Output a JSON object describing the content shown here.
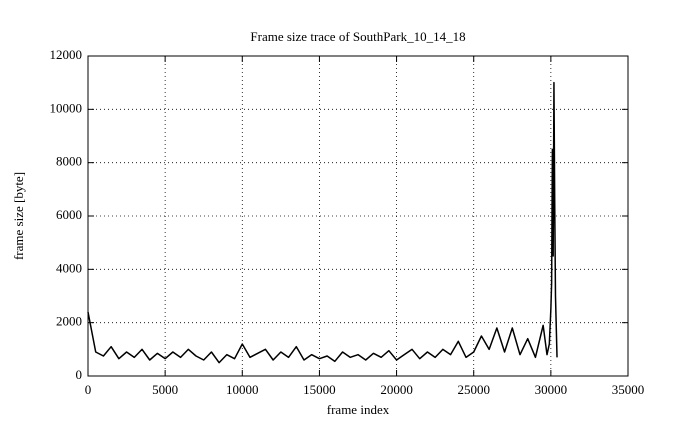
{
  "chart_data": {
    "type": "line",
    "title": "Frame size trace of SouthPark_10_14_18",
    "x_label": "frame index",
    "y_label": "frame size [byte]",
    "x": [
      0,
      500,
      1000,
      1500,
      2000,
      2500,
      3000,
      3500,
      4000,
      4500,
      5000,
      5500,
      6000,
      6500,
      7000,
      7500,
      8000,
      8500,
      9000,
      9500,
      10000,
      10500,
      11000,
      11500,
      12000,
      12500,
      13000,
      13500,
      14000,
      14500,
      15000,
      15500,
      16000,
      16500,
      17000,
      17500,
      18000,
      18500,
      19000,
      19500,
      20000,
      20500,
      21000,
      21500,
      22000,
      22500,
      23000,
      23500,
      24000,
      24500,
      25000,
      25500,
      26000,
      26500,
      27000,
      27500,
      28000,
      28500,
      29000,
      29500,
      29750,
      29900,
      30000,
      30050,
      30100,
      30150,
      30200,
      30250,
      30300,
      30400
    ],
    "series": [
      {
        "name": "frame size",
        "color": "#000000",
        "values": [
          2400,
          900,
          750,
          1100,
          650,
          900,
          700,
          1000,
          600,
          850,
          650,
          900,
          700,
          1000,
          750,
          600,
          900,
          500,
          800,
          650,
          1200,
          700,
          850,
          1000,
          600,
          900,
          700,
          1100,
          600,
          800,
          650,
          750,
          550,
          900,
          700,
          800,
          600,
          850,
          700,
          950,
          600,
          800,
          1000,
          650,
          900,
          700,
          1000,
          800,
          1300,
          700,
          900,
          1500,
          1000,
          1800,
          900,
          1800,
          800,
          1400,
          700,
          1900,
          800,
          1200,
          2500,
          3500,
          8500,
          4500,
          11000,
          6500,
          3000,
          700
        ]
      }
    ],
    "xlim": [
      0,
      35000
    ],
    "xticks": [
      0,
      5000,
      10000,
      15000,
      20000,
      25000,
      30000,
      35000
    ],
    "ylim": [
      0,
      12000
    ],
    "yticks": [
      0,
      2000,
      4000,
      6000,
      8000,
      10000,
      12000
    ],
    "grid": true
  }
}
